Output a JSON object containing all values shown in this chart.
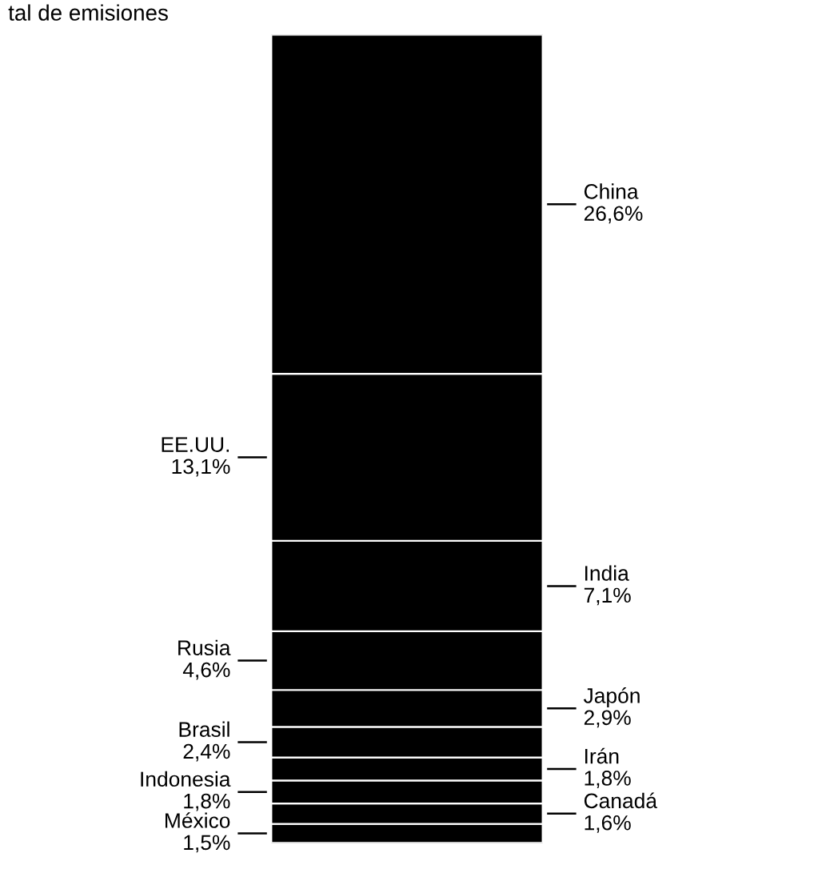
{
  "chart_data": {
    "type": "bar",
    "stacked": true,
    "title": "tal de emisiones",
    "categories": [
      null
    ],
    "series": [
      {
        "name": "México",
        "color": "#000000",
        "values": [
          1.5
        ],
        "value_labels": [
          "1,5%"
        ]
      },
      {
        "name": "Canadá",
        "color": "#000000",
        "values": [
          1.6
        ],
        "value_labels": [
          "1,6%"
        ]
      },
      {
        "name": "Indonesia",
        "color": "#000000",
        "values": [
          1.8
        ],
        "value_labels": [
          "1,8%"
        ]
      },
      {
        "name": "Irán",
        "color": "#000000",
        "values": [
          1.8
        ],
        "value_labels": [
          "1,8%"
        ]
      },
      {
        "name": "Brasil",
        "color": "#000000",
        "values": [
          2.4
        ],
        "value_labels": [
          "2,4%"
        ]
      },
      {
        "name": "Japón",
        "color": "#000000",
        "values": [
          2.9
        ],
        "value_labels": [
          "2,9%"
        ]
      },
      {
        "name": "Rusia",
        "color": "#000000",
        "values": [
          4.6
        ],
        "value_labels": [
          "4,6%"
        ]
      },
      {
        "name": "India",
        "color": "#000000",
        "values": [
          7.1
        ],
        "value_labels": [
          "7,1%"
        ]
      },
      {
        "name": "EE.UU.",
        "color": "#000000",
        "values": [
          13.1
        ],
        "value_labels": [
          "13,1%"
        ]
      },
      {
        "name": "China",
        "color": "#000000",
        "values": [
          26.6
        ],
        "value_labels": [
          "26,6%"
        ]
      }
    ]
  }
}
